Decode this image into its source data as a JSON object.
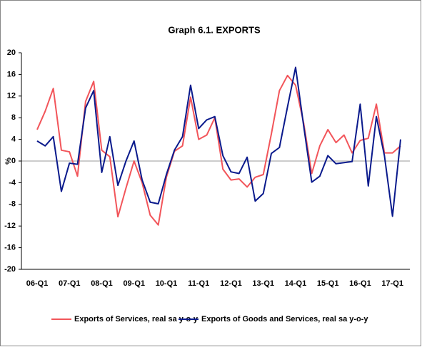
{
  "chart_data": {
    "type": "line",
    "title": "Graph 6.1. EXPORTS",
    "y_label": "%",
    "categories": [
      "06-Q1",
      null,
      null,
      null,
      "07-Q1",
      null,
      null,
      null,
      "08-Q1",
      null,
      null,
      null,
      "09-Q1",
      null,
      null,
      null,
      "10-Q1",
      null,
      null,
      null,
      "11-Q1",
      null,
      null,
      null,
      "12-Q1",
      null,
      null,
      null,
      "13-Q1",
      null,
      null,
      null,
      "14-Q1",
      null,
      null,
      null,
      "15-Q1",
      null,
      null,
      null,
      "16-Q1",
      null,
      null,
      null,
      "17-Q1",
      null
    ],
    "series": [
      {
        "name": "Exports of Services, real sa y-o-y",
        "color": "#f2555a",
        "values": [
          5.8,
          9.2,
          13.4,
          2.0,
          1.7,
          -2.8,
          11.0,
          14.7,
          2.0,
          0.8,
          -10.3,
          -5.0,
          0.0,
          -4.0,
          -10.0,
          -11.8,
          -3.0,
          1.8,
          2.8,
          11.8,
          4.0,
          4.8,
          8.0,
          -1.5,
          -3.5,
          -3.3,
          -4.8,
          -3.0,
          -2.5,
          5.0,
          13.0,
          15.8,
          14.0,
          7.0,
          -2.3,
          2.8,
          5.8,
          3.4,
          4.8,
          1.5,
          3.8,
          4.2,
          10.5,
          1.5,
          1.5,
          2.8
        ]
      },
      {
        "name": "Exports of Goods and Services, real sa y-o-y",
        "color": "#0a1a8c",
        "values": [
          3.7,
          2.8,
          4.5,
          -5.6,
          -0.4,
          -0.6,
          9.8,
          13.0,
          -2.1,
          4.5,
          -4.5,
          0.0,
          3.7,
          -3.5,
          -7.6,
          -7.9,
          -2.5,
          2.0,
          4.5,
          14.0,
          6.0,
          7.6,
          8.2,
          1.0,
          -2.0,
          -2.3,
          0.7,
          -7.4,
          -6.0,
          1.4,
          2.5,
          10.0,
          17.3,
          6.5,
          -3.9,
          -2.8,
          1.0,
          -0.5,
          -0.3,
          -0.1,
          10.5,
          -4.6,
          8.2,
          1.0,
          -10.2,
          4.0
        ]
      }
    ],
    "ylim": [
      -20,
      20
    ],
    "yticks": [
      -20,
      -16,
      -12,
      -8,
      -4,
      0,
      4,
      8,
      12,
      16,
      20
    ],
    "legend": "bottom"
  }
}
